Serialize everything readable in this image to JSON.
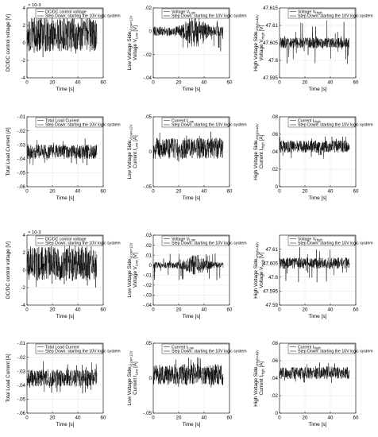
{
  "figure_title": "",
  "chart_data": [
    {
      "type": "line",
      "ylabel": "DC/DC control voltage [V]",
      "xlabel": "Time [s]",
      "exponent": "× 10^-3",
      "xlim": [
        0,
        60
      ],
      "xticks": [
        0,
        20,
        40,
        60
      ],
      "ylim": [
        -4,
        4
      ],
      "yticks": [
        -4,
        -2,
        0,
        2,
        4
      ],
      "legend": [
        "DC/DC control voltage",
        "Step Down: starting the 10V logic system"
      ],
      "series": [
        {
          "t_end": 55,
          "center": 1,
          "amplitude": 2,
          "spike_min": -2,
          "spike_max": 3,
          "pattern": "uniform"
        }
      ],
      "grid": true,
      "legend_position": "top"
    },
    {
      "type": "line",
      "ylabel": {
        "a": "Low Voltage Side",
        "a_sub": "VLow=12V",
        "b": "Voltage V",
        "b_sub": "Low",
        "c": " [V]"
      },
      "xlabel": "Time [s]",
      "xlim": [
        0,
        60
      ],
      "xticks": [
        0,
        20,
        40,
        60
      ],
      "ylim": [
        -0.04,
        0.02
      ],
      "yticks": [
        -0.04,
        -0.02,
        0,
        0.02
      ],
      "legend": [
        "Voltage V",
        "Low",
        "Step Down: starting the 10V logic system"
      ],
      "series": [
        {
          "t_end": 55,
          "center": 0,
          "amplitude": 0.008,
          "spike_min": -0.018,
          "spike_max": 0.013,
          "pattern": "burst"
        }
      ],
      "grid": true,
      "legend_position": "top"
    },
    {
      "type": "line",
      "ylabel": {
        "a": "High Voltage Side",
        "a_sub": "VHigh=48V",
        "b": "Voltage V",
        "b_sub": "High",
        "c": " [V]"
      },
      "xlabel": "Time [s]",
      "xlim": [
        0,
        60
      ],
      "xticks": [
        0,
        20,
        40,
        60
      ],
      "ylim": [
        47.595,
        47.615
      ],
      "yticks": [
        47.595,
        47.6,
        47.605,
        47.61,
        47.615
      ],
      "legend": [
        "Voltage V",
        "High",
        "Step Down: starting the 10V logic system"
      ],
      "series": [
        {
          "t_end": 55,
          "center": 47.605,
          "amplitude": 0.0015,
          "spike_min": 47.599,
          "spike_max": 47.612,
          "pattern": "band"
        }
      ],
      "grid": true,
      "legend_position": "top"
    },
    {
      "type": "line",
      "ylabel": "Total Load Current [A]",
      "xlabel": "Time [s]",
      "xlim": [
        0,
        60
      ],
      "xticks": [
        0,
        20,
        40,
        60
      ],
      "ylim": [
        -0.06,
        -0.01
      ],
      "yticks": [
        -0.06,
        -0.05,
        -0.04,
        -0.03,
        -0.02,
        -0.01
      ],
      "legend": [
        "Total Load Current",
        "Step Down: starting the 10V logic system"
      ],
      "series": [
        {
          "t_end": 55,
          "center": -0.035,
          "amplitude": 0.005,
          "spike_min": -0.045,
          "spike_max": -0.025,
          "pattern": "band"
        }
      ],
      "grid": true,
      "legend_position": "top"
    },
    {
      "type": "line",
      "ylabel": {
        "a": "Low Voltage Side",
        "a_sub": "VLow=12V",
        "b": "Current I",
        "b_sub": "Low",
        "c": " [A]"
      },
      "xlabel": "Time [s]",
      "xlim": [
        0,
        60
      ],
      "xticks": [
        0,
        20,
        40,
        60
      ],
      "ylim": [
        -0.05,
        0.05
      ],
      "yticks": [
        -0.05,
        0,
        0.05
      ],
      "legend": [
        "Current I",
        "Low",
        "Step Down: starting the 10V logic system"
      ],
      "series": [
        {
          "t_end": 55,
          "center": 0.005,
          "amplitude": 0.015,
          "spike_min": -0.015,
          "spike_max": 0.03,
          "pattern": "uniform"
        }
      ],
      "grid": true,
      "legend_position": "top"
    },
    {
      "type": "line",
      "ylabel": {
        "a": "High Voltage Side",
        "a_sub": "VHigh=48V",
        "b": "Current I",
        "b_sub": "High",
        "c": " [A]"
      },
      "xlabel": "Time [s]",
      "xlim": [
        0,
        60
      ],
      "xticks": [
        0,
        20,
        40,
        60
      ],
      "ylim": [
        0,
        0.08
      ],
      "yticks": [
        0,
        0.02,
        0.04,
        0.06,
        0.08
      ],
      "legend": [
        "Current I",
        "High",
        "Step Down: starting the 10V logic system"
      ],
      "series": [
        {
          "t_end": 55,
          "center": 0.046,
          "amplitude": 0.007,
          "spike_min": 0.032,
          "spike_max": 0.06,
          "pattern": "uniform"
        }
      ],
      "grid": true,
      "legend_position": "top"
    },
    {
      "type": "line",
      "ylabel": "DC/DC control voltage [V]",
      "xlabel": "Time [s]",
      "exponent": "× 10^-3",
      "xlim": [
        0,
        60
      ],
      "xticks": [
        0,
        20,
        40,
        60
      ],
      "ylim": [
        -4,
        4
      ],
      "yticks": [
        -4,
        -2,
        0,
        2,
        4
      ],
      "legend": [
        "DC/DC control voltage",
        "Step Down: starting the 10V logic system"
      ],
      "series": [
        {
          "t_end": 55,
          "center": 0.8,
          "amplitude": 2,
          "spike_min": -2,
          "spike_max": 3,
          "pattern": "uniform"
        }
      ],
      "grid": true,
      "legend_position": "top"
    },
    {
      "type": "line",
      "ylabel": {
        "a": "Low Voltage Side",
        "a_sub": "VLow=12V",
        "b": "Voltage V",
        "b_sub": "Low",
        "c": " [V]"
      },
      "xlabel": "Time [s]",
      "xlim": [
        0,
        60
      ],
      "xticks": [
        0,
        20,
        40,
        60
      ],
      "ylim": [
        -0.04,
        0.03
      ],
      "yticks": [
        -0.04,
        -0.03,
        -0.02,
        -0.01,
        0,
        0.01,
        0.02,
        0.03
      ],
      "legend": [
        "Voltage V",
        "Low",
        "Step Down: starting the 10V logic system"
      ],
      "series": [
        {
          "t_end": 55,
          "center": 0,
          "amplitude": 0.006,
          "spike_min": -0.016,
          "spike_max": 0.013,
          "pattern": "burst"
        }
      ],
      "grid": true,
      "legend_position": "top"
    },
    {
      "type": "line",
      "ylabel": {
        "a": "High Voltage Side",
        "a_sub": "VHigh=48V",
        "b": "Voltage V",
        "b_sub": "High",
        "c": " [V]"
      },
      "xlabel": "Time [s]",
      "xlim": [
        0,
        60
      ],
      "xticks": [
        0,
        20,
        40,
        60
      ],
      "ylim": [
        47.59,
        47.615
      ],
      "yticks": [
        47.59,
        47.595,
        47.6,
        47.605,
        47.61
      ],
      "legend": [
        "Voltage V",
        "High",
        "Step Down: starting the 10V logic system"
      ],
      "series": [
        {
          "t_end": 55,
          "center": 47.605,
          "amplitude": 0.002,
          "spike_min": 47.598,
          "spike_max": 47.611,
          "pattern": "band"
        }
      ],
      "grid": true,
      "legend_position": "top"
    },
    {
      "type": "line",
      "ylabel": "Total Load Current [A]",
      "xlabel": "Time [s]",
      "xlim": [
        0,
        60
      ],
      "xticks": [
        0,
        20,
        40,
        60
      ],
      "ylim": [
        -0.06,
        -0.01
      ],
      "yticks": [
        -0.06,
        -0.05,
        -0.04,
        -0.03,
        -0.02,
        -0.01
      ],
      "legend": [
        "Total Load Current",
        "Step Down: starting the 10V logic system"
      ],
      "series": [
        {
          "t_end": 55,
          "center": -0.035,
          "amplitude": 0.006,
          "spike_min": -0.046,
          "spike_max": -0.022,
          "pattern": "band"
        }
      ],
      "grid": true,
      "legend_position": "top"
    },
    {
      "type": "line",
      "ylabel": {
        "a": "Low Voltage Side",
        "a_sub": "VLow=12V",
        "b": "Current I",
        "b_sub": "Low",
        "c": " [A]"
      },
      "xlabel": "Time [s]",
      "xlim": [
        0,
        60
      ],
      "xticks": [
        0,
        20,
        40,
        60
      ],
      "ylim": [
        -0.05,
        0.05
      ],
      "yticks": [
        -0.05,
        0,
        0.05
      ],
      "legend": [
        "Current I",
        "Low",
        "Step Down: starting the 10V logic system"
      ],
      "series": [
        {
          "t_end": 55,
          "center": 0.005,
          "amplitude": 0.015,
          "spike_min": -0.015,
          "spike_max": 0.03,
          "pattern": "uniform"
        }
      ],
      "grid": true,
      "legend_position": "top"
    },
    {
      "type": "line",
      "ylabel": {
        "a": "High Voltage Side",
        "a_sub": "VHigh=48V",
        "b": "Current I",
        "b_sub": "High",
        "c": " [A]"
      },
      "xlabel": "Time [s]",
      "xlim": [
        0,
        60
      ],
      "xticks": [
        0,
        20,
        40,
        60
      ],
      "ylim": [
        0,
        0.08
      ],
      "yticks": [
        0,
        0.02,
        0.04,
        0.06,
        0.08
      ],
      "legend": [
        "Current I",
        "High",
        "Step Down: starting the 10V logic system"
      ],
      "series": [
        {
          "t_end": 55,
          "center": 0.046,
          "amplitude": 0.007,
          "spike_min": 0.032,
          "spike_max": 0.06,
          "pattern": "uniform"
        }
      ],
      "grid": true,
      "legend_position": "top"
    }
  ]
}
